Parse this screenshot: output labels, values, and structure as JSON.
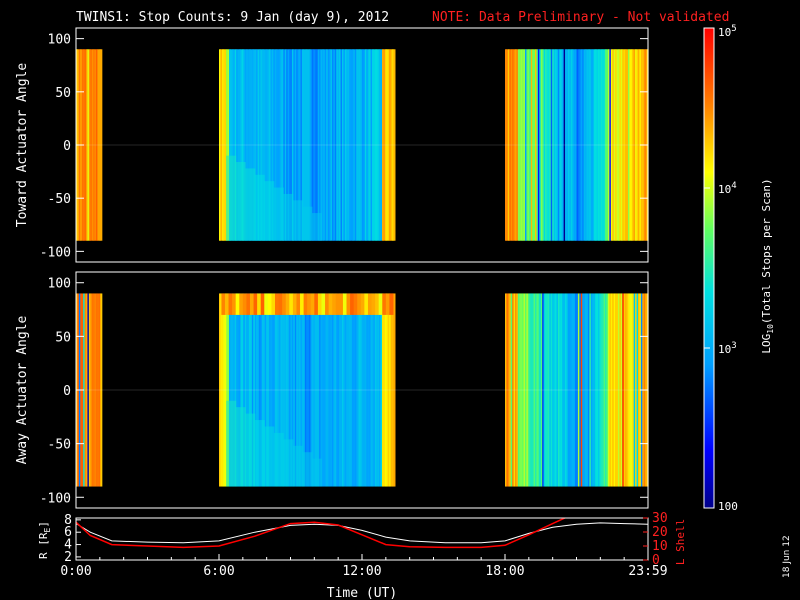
{
  "title": "TWINS1: Stop Counts:  9 Jan (day   9), 2012",
  "note": "NOTE: Data Preliminary - Not validated",
  "side_date": "18 Jun 12",
  "chart_data": [
    {
      "type": "heatmap",
      "ylabel": "Toward Actuator Angle",
      "ylim": [
        -110,
        110
      ],
      "yticks": [
        "100",
        "50",
        "0",
        "-50",
        "-100"
      ],
      "xlim_hours": [
        0,
        24
      ],
      "angle_range": [
        -90,
        90
      ],
      "data_intervals_hours": [
        [
          0.0,
          1.1
        ],
        [
          6.0,
          13.4
        ],
        [
          18.0,
          24.0
        ]
      ]
    },
    {
      "type": "heatmap",
      "ylabel": "Away Actuator Angle",
      "ylim": [
        -110,
        110
      ],
      "yticks": [
        "100",
        "50",
        "0",
        "-50",
        "-100"
      ],
      "xlim_hours": [
        0,
        24
      ],
      "angle_range": [
        -90,
        90
      ],
      "data_intervals_hours": [
        [
          0.0,
          1.1
        ],
        [
          6.0,
          13.4
        ],
        [
          18.0,
          24.0
        ]
      ]
    },
    {
      "type": "line",
      "ylabel_left": "R [R",
      "ylabel_left_sub": "E",
      "ylabel_left_end": "]",
      "ylabel_right": "L Shell",
      "yticks_left": [
        "8",
        "6",
        "4",
        "2"
      ],
      "yticks_right": [
        "30",
        "20",
        "10",
        "0"
      ],
      "ylim_left": [
        1.5,
        8.3
      ],
      "ylim_right": [
        0,
        30
      ],
      "xticks": [
        "0:00",
        "6:00",
        "12:00",
        "18:00",
        "23:59"
      ],
      "xlabel": "Time (UT)",
      "series": [
        {
          "color": "#ffffff",
          "x": [
            0,
            0.6,
            1.5,
            3,
            4.5,
            6,
            7.5,
            9,
            10,
            11,
            12,
            13,
            14,
            15.5,
            17,
            18,
            19,
            20,
            21,
            22,
            23,
            24
          ],
          "y": [
            7.4,
            6.0,
            4.6,
            4.4,
            4.3,
            4.6,
            6.0,
            7.1,
            7.3,
            7.1,
            6.3,
            5.2,
            4.6,
            4.3,
            4.3,
            4.6,
            5.8,
            6.8,
            7.3,
            7.5,
            7.4,
            7.3
          ]
        },
        {
          "color": "#ff0000",
          "x": [
            0,
            0.6,
            1.5,
            3,
            4.5,
            6,
            7.5,
            9,
            10,
            11,
            12,
            13,
            14,
            15.5,
            17,
            18,
            19,
            20,
            20.7
          ],
          "y": [
            27.0,
            17.5,
            11.0,
            10.0,
            9.0,
            10.0,
            17.0,
            26.0,
            27.0,
            25.0,
            18.0,
            11.0,
            9.5,
            9.0,
            9.0,
            10.5,
            18.0,
            26.0,
            31.5
          ]
        }
      ]
    }
  ],
  "colorbar": {
    "label_prefix": "LOG",
    "label_sub": "10",
    "label_suffix": "(Total Stops per Scan)",
    "ticks": [
      {
        "base": "10",
        "exp": "5",
        "value": 100000
      },
      {
        "base": "10",
        "exp": "4",
        "value": 10000
      },
      {
        "base": "10",
        "exp": "3",
        "value": 1000
      },
      {
        "base": "100",
        "exp": "",
        "value": 100
      }
    ],
    "range": [
      100,
      100000
    ]
  }
}
